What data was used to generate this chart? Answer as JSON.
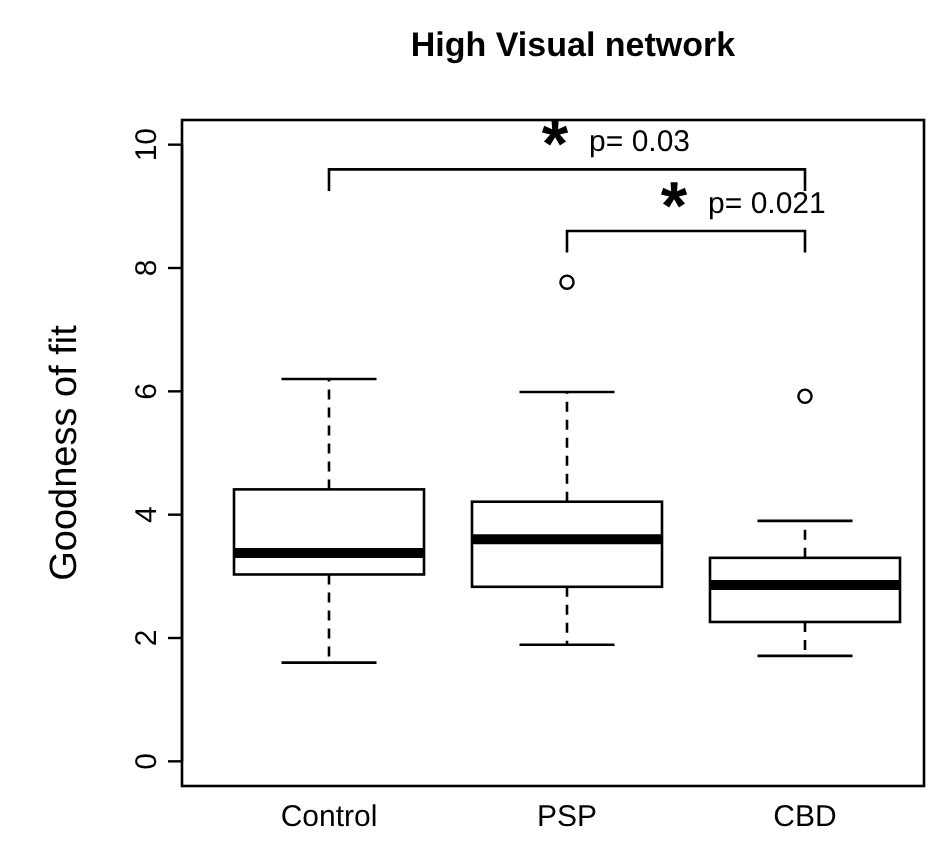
{
  "chart_data": {
    "type": "box",
    "title": "High Visual network",
    "ylabel": "Goodness of fit",
    "categories": [
      "Control",
      "PSP",
      "CBD"
    ],
    "boxes": [
      {
        "low": 1.6,
        "q1": 3.03,
        "median": 3.38,
        "q3": 4.41,
        "high": 6.2
      },
      {
        "low": 1.89,
        "q1": 2.83,
        "median": 3.6,
        "q3": 4.21,
        "high": 5.99,
        "outliers": [
          7.77
        ]
      },
      {
        "low": 1.71,
        "q1": 2.26,
        "median": 2.86,
        "q3": 3.3,
        "high": 3.9,
        "outliers": [
          5.92
        ]
      }
    ],
    "ylim": [
      -0.4,
      10.4
    ],
    "yticks": [
      0,
      2,
      4,
      6,
      8,
      10
    ],
    "annotations": [
      "*",
      "p= 0.03",
      "*",
      "p= 0.021"
    ],
    "grid": false
  }
}
